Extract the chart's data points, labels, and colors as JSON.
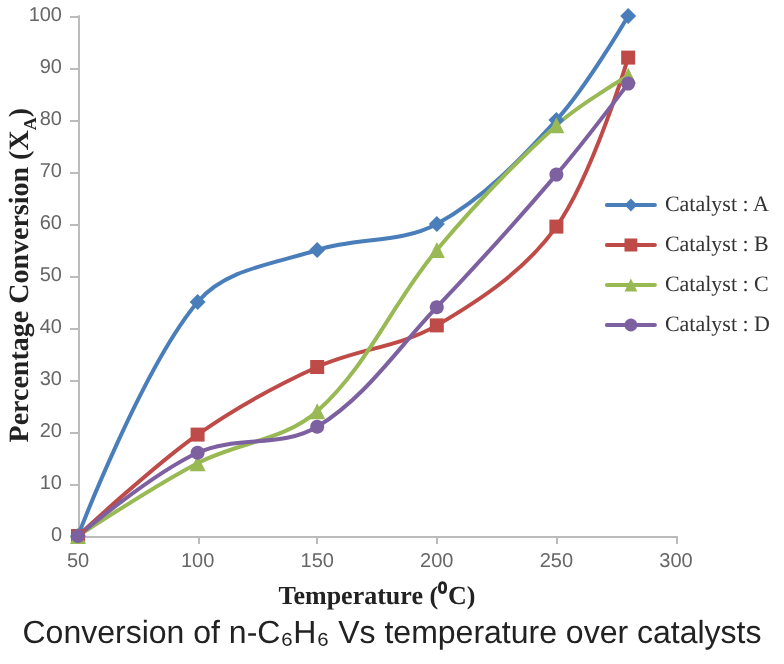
{
  "chart_data": {
    "type": "line",
    "title": "Conversion of n-C₆H₆ Vs temperature over catalysts",
    "xlabel": "Temperature (⁰C)",
    "ylabel": "Percentage Conversion (X$_{A}$)",
    "x": [
      50,
      100,
      150,
      200,
      250,
      280
    ],
    "series": [
      {
        "name": "Catalyst : A",
        "color": "#4a7ebb",
        "marker": "diamond",
        "values": [
          0,
          45,
          55,
          60,
          80,
          100
        ]
      },
      {
        "name": "Catalyst : B",
        "color": "#be4b48",
        "marker": "square",
        "values": [
          0,
          19.5,
          32.5,
          40.5,
          59.5,
          92
        ]
      },
      {
        "name": "Catalyst : C",
        "color": "#98b954",
        "marker": "triangle",
        "values": [
          0,
          14,
          24,
          55,
          79,
          88.5
        ]
      },
      {
        "name": "Catalyst : D",
        "color": "#7d60a0",
        "marker": "circle",
        "values": [
          0,
          16,
          21,
          44,
          69.5,
          87
        ]
      }
    ],
    "xlim": [
      50,
      300
    ],
    "xticks": [
      50,
      100,
      150,
      200,
      250,
      300
    ],
    "ylim": [
      0,
      100
    ],
    "yticks": [
      0,
      10,
      20,
      30,
      40,
      50,
      60,
      70,
      80,
      90,
      100
    ],
    "grid": false,
    "legend": "right",
    "line_style": "solid"
  }
}
